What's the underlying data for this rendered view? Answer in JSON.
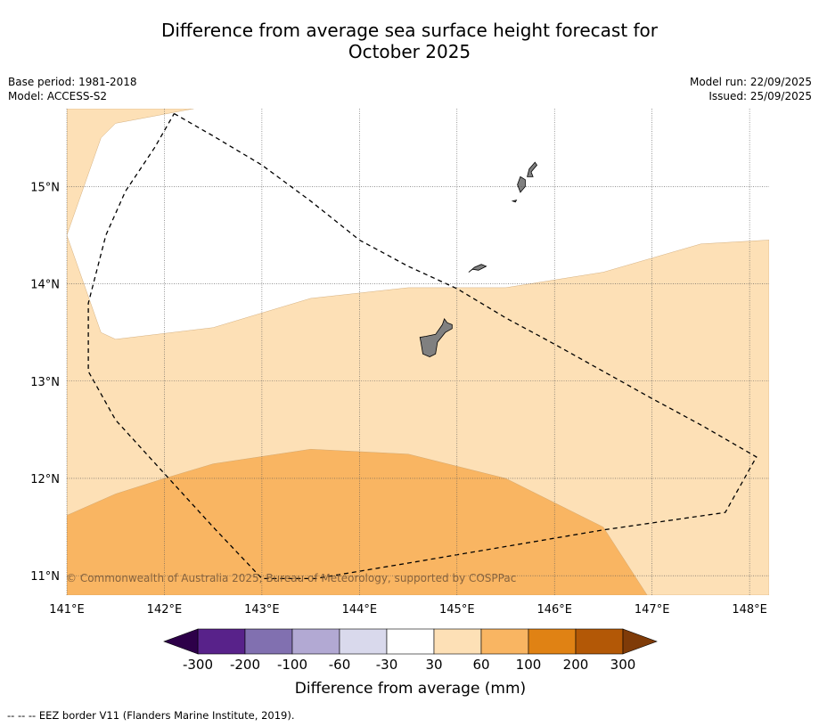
{
  "title": {
    "line1": "Difference from average sea surface height forecast for",
    "line2": "October 2025"
  },
  "meta": {
    "base_period": "Base period: 1981-2018",
    "model": "Model: ACCESS-S2",
    "model_run": "Model run: 22/09/2025",
    "issued": "Issued: 25/09/2025"
  },
  "copyright": "© Commonwealth of Australia 2025, Bureau of Meteorology, supported by COSPPac",
  "footer": "--  --  -- EEZ border V11 (Flanders Marine Institute, 2019).",
  "colors": {
    "land": "#808080",
    "neg300": "#2d0049",
    "neg200": "#58228a",
    "neg100": "#8170b0",
    "neg60": "#b2a9d3",
    "neg30": "#d9d9ec",
    "neutral": "#ffffff",
    "pos30": "#fde0b6",
    "pos60": "#f9b562",
    "pos100": "#e08214",
    "pos200": "#b35806",
    "pos300": "#7f3b08"
  },
  "chart_data": {
    "type": "heatmap",
    "map_kind": "filled-contour map",
    "title": "Difference from average sea surface height forecast for October 2025",
    "units": "mm",
    "lon_range": [
      141.0,
      148.2
    ],
    "lat_range": [
      10.8,
      15.8
    ],
    "x_ticks": [
      {
        "value": 141,
        "label": "141°E"
      },
      {
        "value": 142,
        "label": "142°E"
      },
      {
        "value": 143,
        "label": "143°E"
      },
      {
        "value": 144,
        "label": "144°E"
      },
      {
        "value": 145,
        "label": "145°E"
      },
      {
        "value": 146,
        "label": "146°E"
      },
      {
        "value": 147,
        "label": "147°E"
      },
      {
        "value": 148,
        "label": "148°E"
      }
    ],
    "y_ticks": [
      {
        "value": 15,
        "label": "15°N"
      },
      {
        "value": 14,
        "label": "14°N"
      },
      {
        "value": 13,
        "label": "13°N"
      },
      {
        "value": 12,
        "label": "12°N"
      },
      {
        "value": 11,
        "label": "11°N"
      }
    ],
    "grid": true,
    "regions": [
      {
        "name": "30-60",
        "color": "#fde0b6",
        "polygon": [
          [
            141.0,
            15.8
          ],
          [
            142.3,
            15.8
          ],
          [
            141.5,
            15.65
          ],
          [
            141.35,
            15.5
          ],
          [
            141.0,
            14.5
          ],
          [
            141.35,
            13.5
          ],
          [
            141.5,
            13.43
          ],
          [
            142.5,
            13.55
          ],
          [
            143.5,
            13.85
          ],
          [
            144.5,
            13.96
          ],
          [
            145.5,
            13.96
          ],
          [
            146.5,
            14.12
          ],
          [
            147.5,
            14.41
          ],
          [
            148.2,
            14.45
          ],
          [
            148.2,
            10.8
          ],
          [
            141.0,
            10.8
          ]
        ]
      },
      {
        "name": "60-100",
        "color": "#f9b562",
        "polygon": [
          [
            141.0,
            11.62
          ],
          [
            141.5,
            11.84
          ],
          [
            142.0,
            12.0
          ],
          [
            142.5,
            12.15
          ],
          [
            143.5,
            12.3
          ],
          [
            144.5,
            12.25
          ],
          [
            145.5,
            12.0
          ],
          [
            146.5,
            11.5
          ],
          [
            146.95,
            10.8
          ],
          [
            141.0,
            10.8
          ]
        ]
      }
    ],
    "eez_border": [
      [
        142.1,
        15.75
      ],
      [
        142.5,
        15.52
      ],
      [
        143.0,
        15.22
      ],
      [
        143.5,
        14.85
      ],
      [
        144.0,
        14.45
      ],
      [
        144.5,
        14.18
      ],
      [
        145.0,
        13.95
      ],
      [
        145.5,
        13.65
      ],
      [
        146.0,
        13.38
      ],
      [
        146.5,
        13.1
      ],
      [
        147.0,
        12.82
      ],
      [
        147.5,
        12.55
      ],
      [
        148.07,
        12.22
      ],
      [
        147.75,
        11.65
      ],
      [
        146.5,
        11.47
      ],
      [
        145.5,
        11.3
      ],
      [
        144.5,
        11.13
      ],
      [
        143.55,
        10.97
      ],
      [
        143.0,
        10.97
      ],
      [
        142.5,
        11.5
      ],
      [
        142.0,
        12.05
      ],
      [
        141.5,
        12.6
      ],
      [
        141.22,
        13.1
      ],
      [
        141.22,
        13.8
      ],
      [
        141.4,
        14.5
      ],
      [
        141.6,
        14.95
      ],
      [
        141.9,
        15.4
      ],
      [
        142.1,
        15.75
      ]
    ],
    "land": [
      {
        "name": "Guam",
        "polygon": [
          [
            144.72,
            13.25
          ],
          [
            144.65,
            13.28
          ],
          [
            144.63,
            13.4
          ],
          [
            144.62,
            13.45
          ],
          [
            144.68,
            13.46
          ],
          [
            144.78,
            13.48
          ],
          [
            144.85,
            13.58
          ],
          [
            144.87,
            13.64
          ],
          [
            144.9,
            13.6
          ],
          [
            144.95,
            13.58
          ],
          [
            144.95,
            13.54
          ],
          [
            144.88,
            13.5
          ],
          [
            144.8,
            13.4
          ],
          [
            144.78,
            13.28
          ]
        ]
      },
      {
        "name": "Rota",
        "polygon": [
          [
            145.12,
            14.12
          ],
          [
            145.18,
            14.17
          ],
          [
            145.25,
            14.2
          ],
          [
            145.3,
            14.18
          ],
          [
            145.22,
            14.14
          ],
          [
            145.16,
            14.15
          ]
        ]
      },
      {
        "name": "Tinian",
        "polygon": [
          [
            145.57,
            14.85
          ],
          [
            145.61,
            14.86
          ],
          [
            145.6,
            14.84
          ]
        ]
      },
      {
        "name": "Saipan",
        "polygon": [
          [
            145.65,
            14.94
          ],
          [
            145.62,
            15.02
          ],
          [
            145.65,
            15.1
          ],
          [
            145.7,
            15.07
          ],
          [
            145.7,
            15.0
          ]
        ]
      },
      {
        "name": "Saipan-north",
        "polygon": [
          [
            145.72,
            15.1
          ],
          [
            145.74,
            15.18
          ],
          [
            145.8,
            15.25
          ],
          [
            145.82,
            15.22
          ],
          [
            145.76,
            15.15
          ],
          [
            145.78,
            15.1
          ]
        ]
      }
    ],
    "colorbar": {
      "label": "Difference from average (mm)",
      "extend": "both",
      "boundaries": [
        -300,
        -200,
        -100,
        -60,
        -30,
        30,
        60,
        100,
        200,
        300
      ],
      "tick_labels": [
        "-300",
        "-200",
        "-100",
        "-60",
        "-30",
        "30",
        "60",
        "100",
        "200",
        "300"
      ],
      "colors": [
        "#58228a",
        "#8170b0",
        "#b2a9d3",
        "#d9d9ec",
        "#ffffff",
        "#fde0b6",
        "#f9b562",
        "#e08214",
        "#b35806"
      ],
      "under_color": "#2d0049",
      "over_color": "#7f3b08"
    }
  }
}
